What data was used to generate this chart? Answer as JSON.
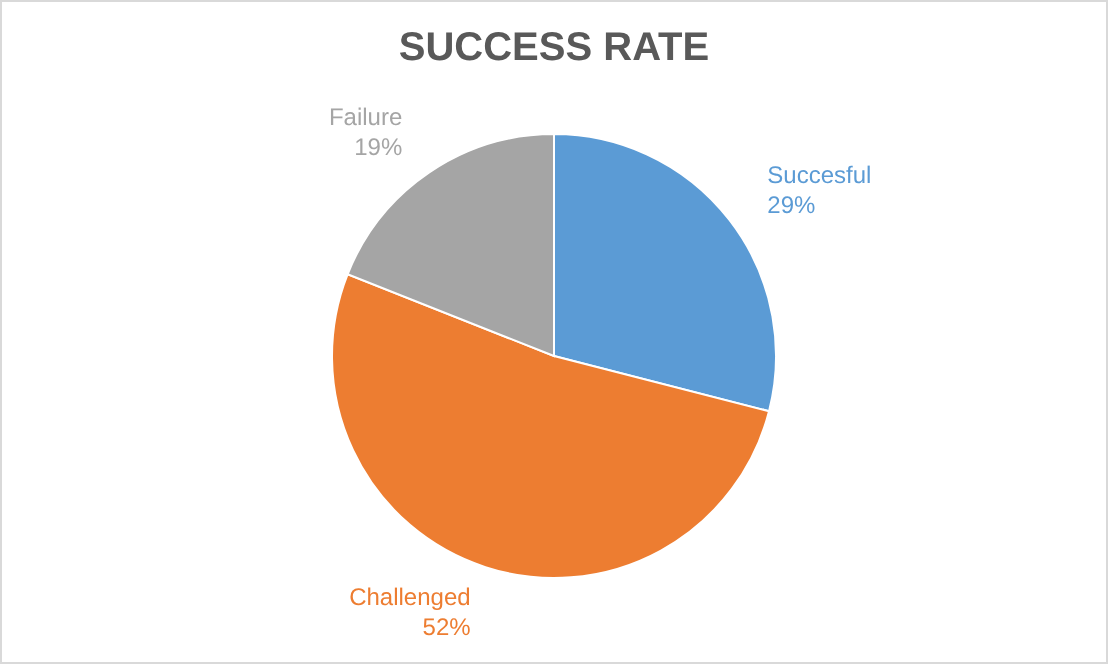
{
  "chart_data": {
    "type": "pie",
    "title": "SUCCESS RATE",
    "categories": [
      "Succesful",
      "Challenged",
      "Failure"
    ],
    "values": [
      29,
      52,
      19
    ],
    "value_labels": [
      "29%",
      "52%",
      "19%"
    ],
    "colors": [
      "#5b9bd5",
      "#ed7d31",
      "#a5a5a5"
    ],
    "legend": false
  }
}
